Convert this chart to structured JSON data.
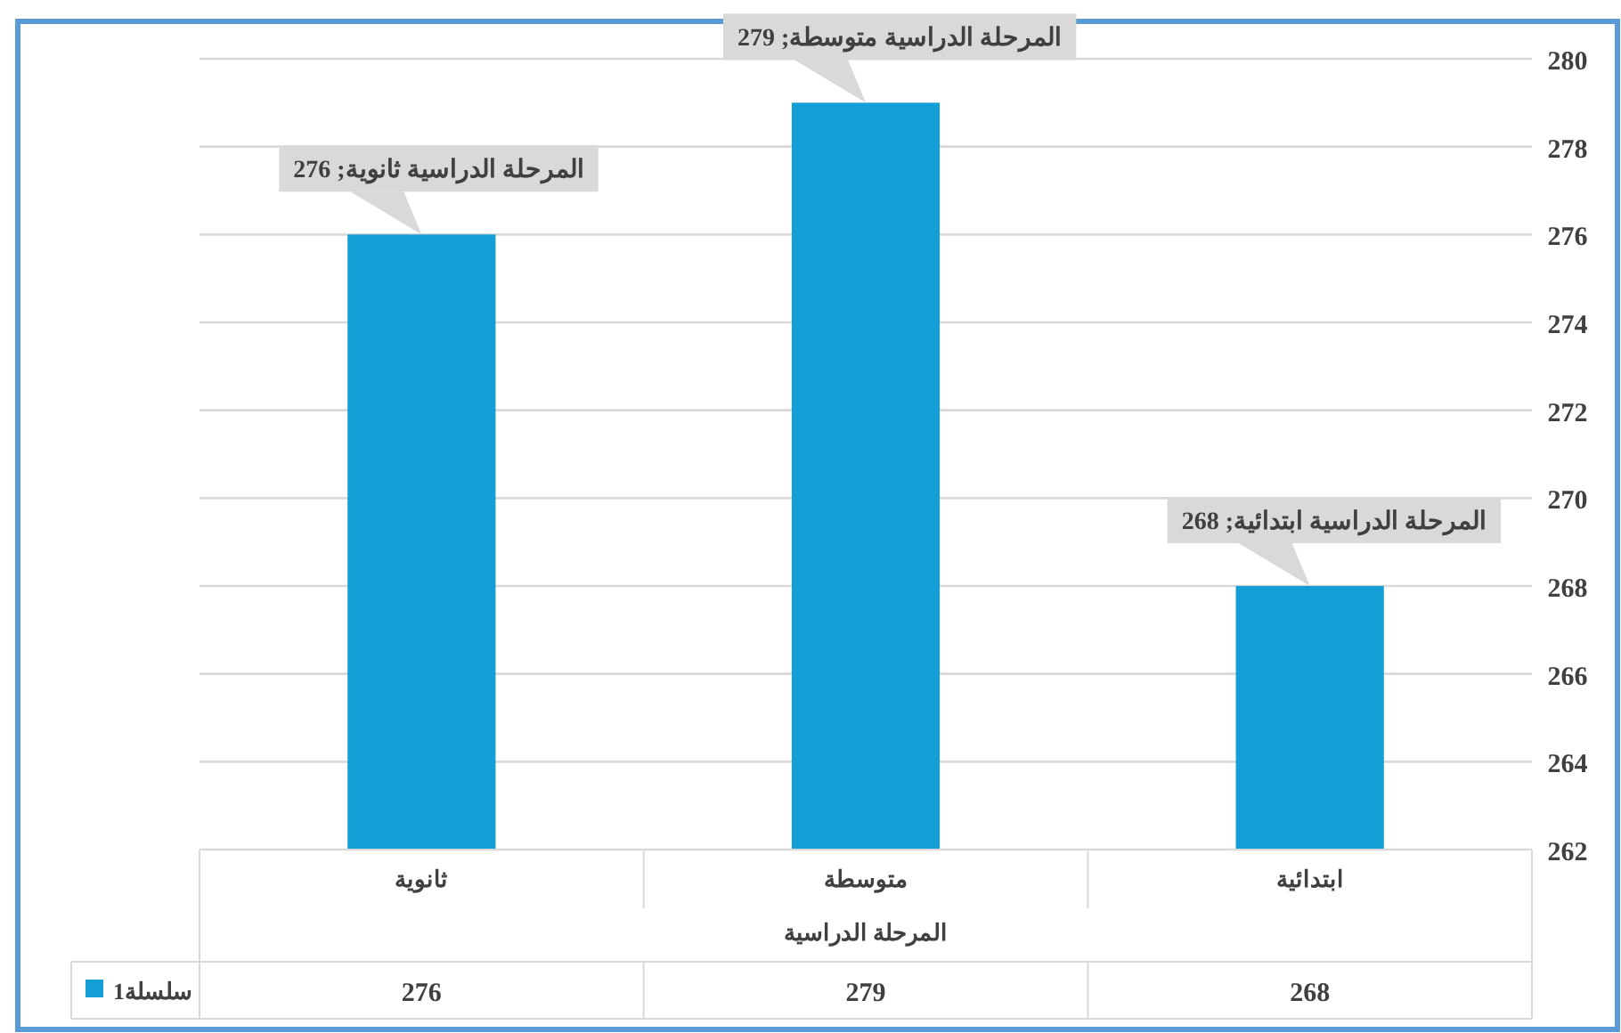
{
  "chart_data": {
    "type": "bar",
    "xlabel": "المرحلة الدراسية",
    "categories": [
      "ثانوية",
      "متوسطة",
      "ابتدائية"
    ],
    "series": [
      {
        "name": "سلسلة1",
        "color": "#139fd6",
        "values": [
          276,
          279,
          268
        ]
      }
    ],
    "ylim": [
      262,
      280
    ],
    "yticks": [
      262,
      264,
      266,
      268,
      270,
      272,
      274,
      276,
      278,
      280
    ],
    "grid": "y",
    "data_labels": true,
    "legend": "bottom left",
    "annotations": [
      {
        "text": "المرحلة الدراسية ثانوية; 276",
        "x": "ثانوية",
        "y": 276
      },
      {
        "text": "المرحلة الدراسية متوسطة; 279",
        "x": "متوسطة",
        "y": 279
      },
      {
        "text": "المرحلة الدراسية ابتدائية; 268",
        "x": "ابتدائية",
        "y": 268
      }
    ]
  }
}
